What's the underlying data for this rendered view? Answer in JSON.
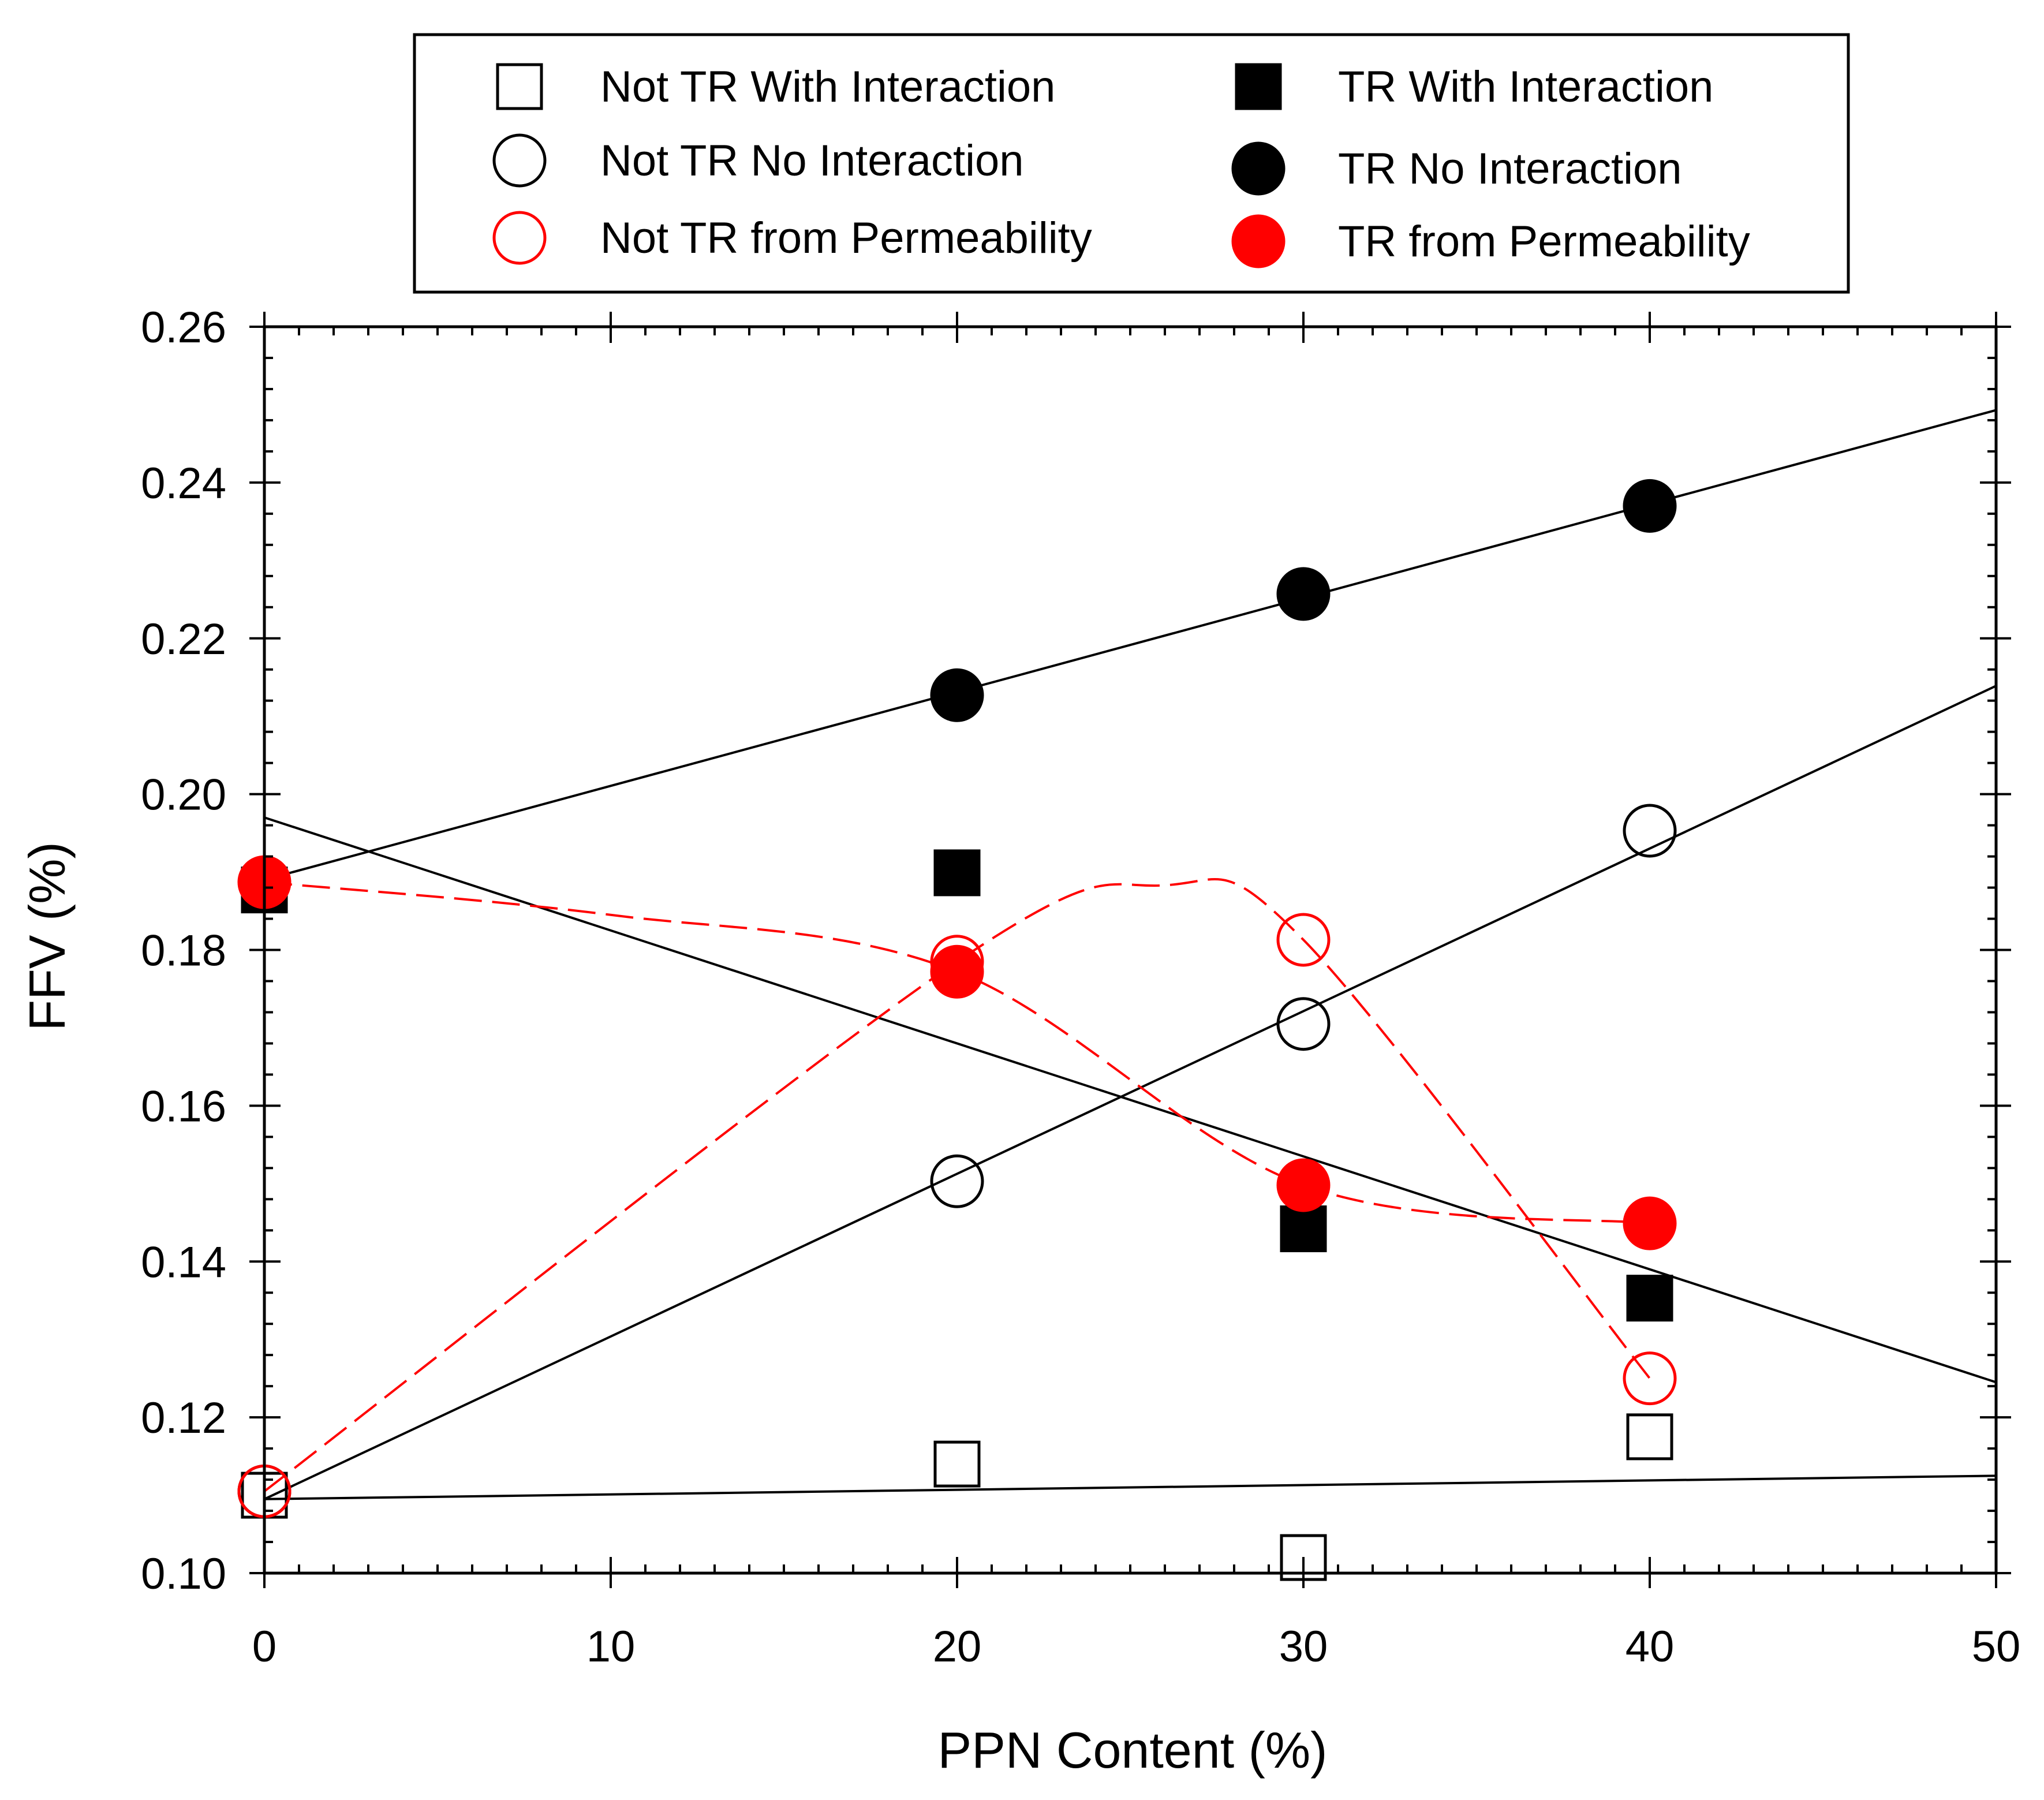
{
  "chart_data": {
    "type": "scatter",
    "title": "",
    "xlabel": "PPN Content (%)",
    "ylabel": "FFV (%)",
    "xlim": [
      0,
      50
    ],
    "ylim": [
      0.1,
      0.26
    ],
    "x_ticks": [
      0,
      10,
      20,
      30,
      40,
      50
    ],
    "y_ticks": [
      0.1,
      0.12,
      0.14,
      0.16,
      0.18,
      0.2,
      0.22,
      0.24,
      0.26
    ],
    "x_tick_labels": [
      "0",
      "10",
      "20",
      "30",
      "40",
      "50"
    ],
    "y_tick_labels": [
      "0.10",
      "0.12",
      "0.14",
      "0.16",
      "0.18",
      "0.20",
      "0.22",
      "0.24",
      "0.26"
    ],
    "grid": false,
    "legend_position": "top",
    "series": [
      {
        "name": "Not TR With Interaction",
        "marker": "square",
        "filled": false,
        "color": "#000000",
        "x": [
          0,
          20,
          30,
          40
        ],
        "y": [
          0.11,
          0.114,
          0.102,
          0.1175
        ]
      },
      {
        "name": "Not TR No Interaction",
        "marker": "circle",
        "filled": false,
        "color": "#000000",
        "x": [
          0,
          20,
          30,
          40
        ],
        "y": [
          0.1105,
          0.1503,
          0.1705,
          0.1953
        ]
      },
      {
        "name": "Not TR from Permeability",
        "marker": "circle",
        "filled": false,
        "color": "#ff0000",
        "x": [
          0,
          20,
          30,
          40
        ],
        "y": [
          0.1105,
          0.1785,
          0.1813,
          0.125
        ]
      },
      {
        "name": "TR With Interaction",
        "marker": "square",
        "filled": true,
        "color": "#000000",
        "x": [
          0,
          20,
          30,
          40
        ],
        "y": [
          0.1877,
          0.1899,
          0.1442,
          0.1353
        ]
      },
      {
        "name": "TR No Interaction",
        "marker": "circle",
        "filled": true,
        "color": "#000000",
        "x": [
          20,
          30,
          40
        ],
        "y": [
          0.2127,
          0.2257,
          0.237
        ]
      },
      {
        "name": "TR from Permeability",
        "marker": "circle",
        "filled": true,
        "color": "#ff0000",
        "x": [
          0,
          20,
          30,
          40
        ],
        "y": [
          0.1887,
          0.1772,
          0.1498,
          0.1449
        ]
      }
    ],
    "fit_lines": [
      {
        "name": "Not TR With Interaction linear fit",
        "style": "solid",
        "color": "#000000",
        "x": [
          0,
          50
        ],
        "y": [
          0.1095,
          0.1125
        ]
      },
      {
        "name": "Not TR No Interaction linear fit",
        "style": "solid",
        "color": "#000000",
        "x": [
          0,
          50
        ],
        "y": [
          0.1095,
          0.2139
        ]
      },
      {
        "name": "TR With Interaction linear fit",
        "style": "solid",
        "color": "#000000",
        "x": [
          0,
          50
        ],
        "y": [
          0.197,
          0.1245
        ]
      },
      {
        "name": "TR No Interaction linear fit",
        "style": "solid",
        "color": "#000000",
        "x": [
          0,
          50
        ],
        "y": [
          0.189,
          0.2493
        ]
      }
    ],
    "smooth_curves": [
      {
        "name": "Not TR from Permeability curve",
        "style": "dashed",
        "color": "#ff0000",
        "x": [
          0,
          20,
          26,
          30,
          40
        ],
        "y": [
          0.1105,
          0.1785,
          0.1883,
          0.1813,
          0.125
        ]
      },
      {
        "name": "TR from Permeability curve",
        "style": "dashed",
        "color": "#ff0000",
        "x": [
          0,
          10,
          20,
          30,
          40
        ],
        "y": [
          0.1887,
          0.1845,
          0.1772,
          0.1498,
          0.1449
        ]
      }
    ]
  }
}
